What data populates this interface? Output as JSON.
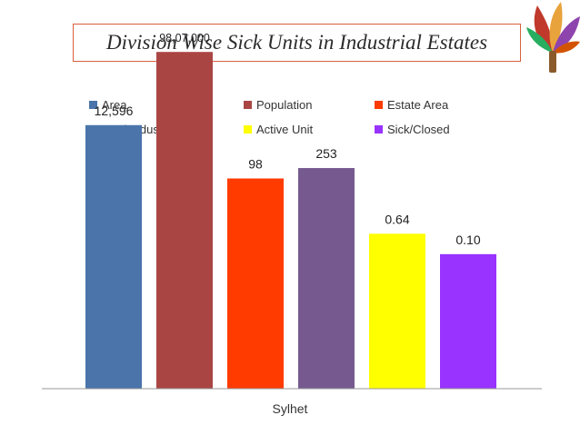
{
  "title": "Division Wise Sick Units in Industrial Estates",
  "logo": {
    "icon": "feather-logo-icon"
  },
  "chart_data": {
    "type": "bar",
    "categories": [
      "Sylhet"
    ],
    "series": [
      {
        "name": "Area",
        "value": 12596,
        "label": "12,596",
        "color": "#4a74aa"
      },
      {
        "name": "Population",
        "value": 9807000,
        "label": "98,07,000",
        "color": "#a94644"
      },
      {
        "name": "Estate Area",
        "value": 98,
        "label": "98",
        "color": "#ff3b00"
      },
      {
        "name": "Total Industrial Unit",
        "value": 253,
        "label": "253",
        "color": "#765a8f"
      },
      {
        "name": "Active Unit",
        "value": 0.64,
        "label": "0.64",
        "color": "#ffff00"
      },
      {
        "name": "Sick/Closed",
        "value": 0.1,
        "label": "0.10",
        "color": "#9933ff"
      }
    ],
    "xlabel": "",
    "ylabel": "",
    "legend_position": "top",
    "grid": false
  }
}
